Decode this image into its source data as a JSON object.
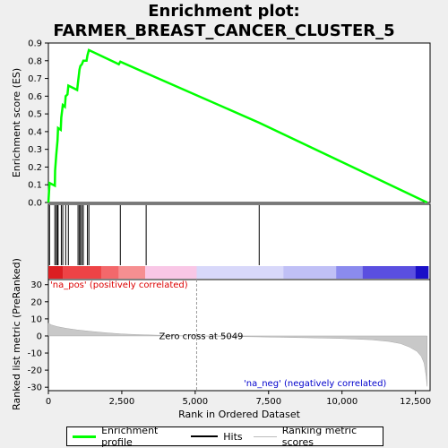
{
  "title": "Enrichment plot: FARMER_BREAST_CANCER_CLUSTER_5",
  "chart_data": {
    "type": "line",
    "x_range": [
      0,
      13000
    ],
    "x_ticks": [
      0,
      2500,
      5000,
      7500,
      10000,
      12500
    ],
    "x_tick_labels": [
      "0",
      "2,500",
      "5,000",
      "7,500",
      "10,000",
      "12,500"
    ],
    "xlabel": "Rank in Ordered Dataset",
    "enrichment": {
      "ylabel": "Enrichment score (ES)",
      "ylim": [
        0,
        0.9
      ],
      "y_ticks": [
        0.0,
        0.1,
        0.2,
        0.3,
        0.4,
        0.5,
        0.6,
        0.7,
        0.8,
        0.9
      ],
      "y_tick_labels": [
        "0.0",
        "0.1",
        "0.2",
        "0.3",
        "0.4",
        "0.5",
        "0.6",
        "0.7",
        "0.8",
        "0.9"
      ],
      "series_color": "#00ff00",
      "points": [
        [
          0,
          0.0
        ],
        [
          40,
          0.11
        ],
        [
          220,
          0.095
        ],
        [
          230,
          0.18
        ],
        [
          270,
          0.27
        ],
        [
          310,
          0.35
        ],
        [
          330,
          0.42
        ],
        [
          420,
          0.41
        ],
        [
          440,
          0.48
        ],
        [
          490,
          0.55
        ],
        [
          560,
          0.54
        ],
        [
          590,
          0.6
        ],
        [
          650,
          0.61
        ],
        [
          680,
          0.66
        ],
        [
          980,
          0.635
        ],
        [
          1010,
          0.68
        ],
        [
          1060,
          0.75
        ],
        [
          1090,
          0.77
        ],
        [
          1140,
          0.78
        ],
        [
          1190,
          0.8
        ],
        [
          1300,
          0.8
        ],
        [
          1330,
          0.83
        ],
        [
          1380,
          0.86
        ],
        [
          2400,
          0.78
        ],
        [
          2450,
          0.795
        ],
        [
          3330,
          0.73
        ],
        [
          7180,
          0.45
        ],
        [
          12900,
          0.0
        ]
      ]
    },
    "hits": [
      40,
      220,
      270,
      310,
      330,
      440,
      490,
      590,
      680,
      1010,
      1060,
      1090,
      1140,
      1190,
      1330,
      1380,
      2450,
      3330,
      7180
    ],
    "ranked_metric": {
      "ylabel": "Ranked list metric (PreRanked)",
      "ylim": [
        -32,
        33
      ],
      "y_ticks": [
        -30,
        -20,
        -10,
        0,
        10,
        20,
        30
      ],
      "y_tick_labels": [
        "-30",
        "-20",
        "-10",
        "0",
        "10",
        "20",
        "30"
      ],
      "points": [
        [
          0,
          7.5
        ],
        [
          100,
          6.5
        ],
        [
          300,
          5.5
        ],
        [
          600,
          4.5
        ],
        [
          1000,
          3.5
        ],
        [
          1500,
          2.6
        ],
        [
          2000,
          1.8
        ],
        [
          2500,
          1.2
        ],
        [
          3000,
          0.8
        ],
        [
          4000,
          0.3
        ],
        [
          5049,
          0.0
        ],
        [
          6000,
          -0.3
        ],
        [
          7000,
          -0.5
        ],
        [
          8000,
          -0.8
        ],
        [
          9000,
          -1.1
        ],
        [
          10000,
          -1.5
        ],
        [
          11000,
          -2.2
        ],
        [
          11600,
          -3.2
        ],
        [
          12000,
          -4.5
        ],
        [
          12300,
          -6.5
        ],
        [
          12550,
          -9.0
        ],
        [
          12700,
          -12.0
        ],
        [
          12800,
          -16.0
        ],
        [
          12870,
          -24.0
        ],
        [
          12900,
          -29.5
        ]
      ],
      "zero_cross": 5049,
      "zero_cross_label": "Zero cross at 5049",
      "pos_label": "'na_pos' (positively correlated)",
      "neg_label": "'na_neg' (negatively correlated)",
      "pos_color": "#ff0000",
      "neg_color": "#0000ff"
    },
    "heatmap_bar": [
      {
        "from": 0,
        "to": 500,
        "color": "#dc1e22"
      },
      {
        "from": 500,
        "to": 1800,
        "color": "#ee4346"
      },
      {
        "from": 1800,
        "to": 2400,
        "color": "#f3686b"
      },
      {
        "from": 2400,
        "to": 3300,
        "color": "#f68f91"
      },
      {
        "from": 3300,
        "to": 5050,
        "color": "#f9c7e6"
      },
      {
        "from": 5050,
        "to": 8000,
        "color": "#d8d8fa"
      },
      {
        "from": 8000,
        "to": 9800,
        "color": "#c0c0f6"
      },
      {
        "from": 9800,
        "to": 10700,
        "color": "#8b8bee"
      },
      {
        "from": 10700,
        "to": 12500,
        "color": "#5a4fe0"
      },
      {
        "from": 12500,
        "to": 12950,
        "color": "#1a0fc8"
      }
    ],
    "legend": [
      "Enrichment profile",
      "Hits",
      "Ranking metric scores"
    ]
  }
}
